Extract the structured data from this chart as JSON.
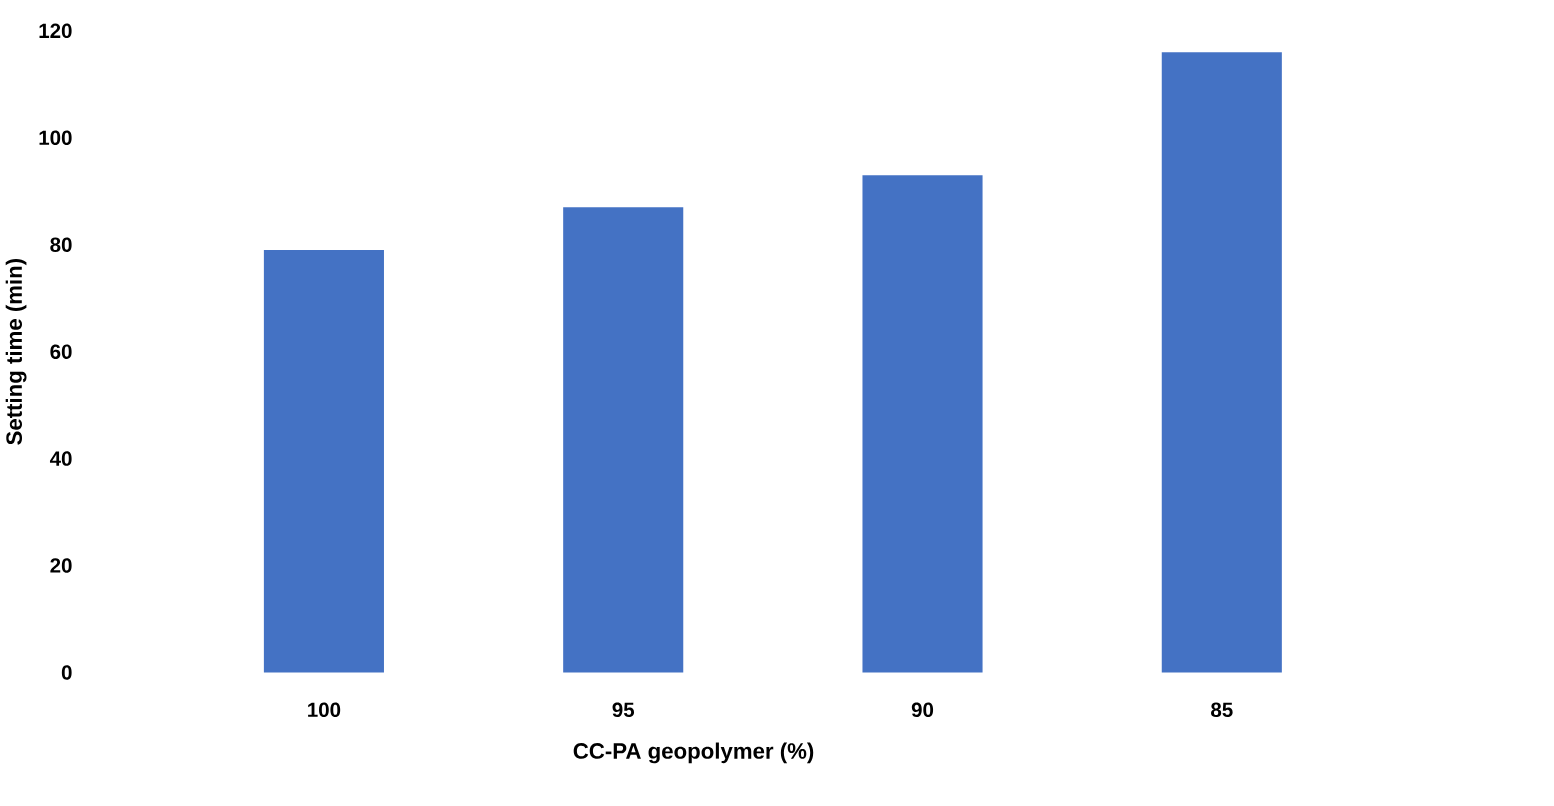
{
  "chart_data": {
    "type": "bar",
    "xlabel": "CC-PA geopolymer (%)",
    "ylabel": "Setting time (min)",
    "categories": [
      "100",
      "95",
      "90",
      "85"
    ],
    "values": [
      79,
      87,
      93,
      116
    ],
    "color": "#4472c4",
    "ylim": [
      0,
      120
    ],
    "yticks": [
      0,
      20,
      40,
      60,
      80,
      100,
      120
    ],
    "grid": false
  }
}
